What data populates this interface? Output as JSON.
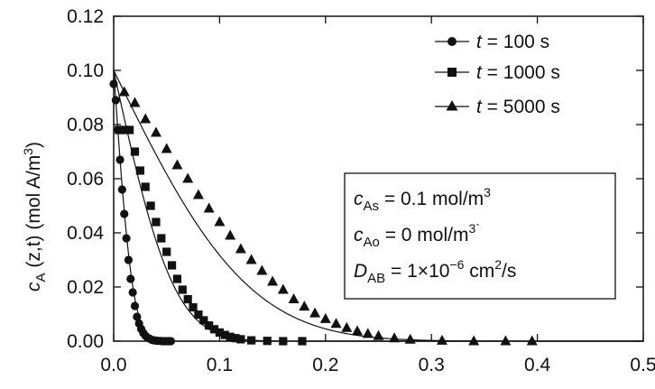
{
  "chart_data": {
    "type": "line",
    "title": "",
    "xlabel": "",
    "ylabel": {
      "var": "c",
      "sub": "A",
      "args": " (z,t) (mol A/m",
      "unit_sup": "3",
      "tail": ")"
    },
    "xlim": [
      0.0,
      0.5
    ],
    "ylim": [
      0.0,
      0.12
    ],
    "x_ticks": [
      "0.0",
      "0.1",
      "0.2",
      "0.3",
      "0.4",
      "0.5"
    ],
    "y_ticks": [
      "0.00",
      "0.02",
      "0.04",
      "0.06",
      "0.08",
      "0.10",
      "0.12"
    ],
    "grid": false,
    "legend_position": "top-right",
    "series": [
      {
        "name_var": "t",
        "name_rest": " = 100 s",
        "marker": "circle",
        "curve_D_cm2_s": 1e-06,
        "curve_t_s": 100,
        "x": [
          0.0,
          0.002,
          0.004,
          0.006,
          0.008,
          0.01,
          0.012,
          0.014,
          0.016,
          0.018,
          0.02,
          0.022,
          0.024,
          0.026,
          0.028,
          0.03,
          0.032,
          0.034,
          0.036,
          0.038,
          0.04,
          0.042,
          0.044,
          0.046,
          0.048,
          0.05,
          0.052,
          0.054
        ],
        "y": [
          0.095,
          0.089,
          0.078,
          0.067,
          0.056,
          0.047,
          0.038,
          0.03,
          0.023,
          0.018,
          0.013,
          0.009,
          0.0065,
          0.0045,
          0.003,
          0.002,
          0.0013,
          0.0009,
          0.0005,
          0.0003,
          0.0002,
          0.0001,
          0.0001,
          0.0,
          0.0,
          0.0,
          0.0,
          0.0
        ]
      },
      {
        "name_var": "t",
        "name_rest": " = 1000 s",
        "marker": "square",
        "curve_D_cm2_s": 1e-06,
        "curve_t_s": 1000,
        "x": [
          0.005,
          0.01,
          0.015,
          0.02,
          0.025,
          0.03,
          0.035,
          0.04,
          0.045,
          0.05,
          0.055,
          0.06,
          0.065,
          0.07,
          0.075,
          0.08,
          0.085,
          0.09,
          0.095,
          0.1,
          0.105,
          0.11,
          0.115,
          0.12,
          0.13,
          0.145,
          0.16,
          0.178
        ],
        "y": [
          0.078,
          0.078,
          0.078,
          0.07,
          0.063,
          0.057,
          0.05,
          0.044,
          0.038,
          0.033,
          0.028,
          0.023,
          0.019,
          0.0155,
          0.0125,
          0.0098,
          0.0077,
          0.0058,
          0.0044,
          0.0032,
          0.0023,
          0.0016,
          0.0011,
          0.0007,
          0.0003,
          0.0001,
          0.0,
          0.0
        ]
      },
      {
        "name_var": "t",
        "name_rest": " = 5000 s",
        "marker": "triangle",
        "curve_D_cm2_s": 1e-06,
        "curve_t_s": 5000,
        "x": [
          0.01,
          0.02,
          0.03,
          0.04,
          0.05,
          0.06,
          0.07,
          0.08,
          0.09,
          0.1,
          0.11,
          0.12,
          0.13,
          0.14,
          0.15,
          0.16,
          0.17,
          0.18,
          0.19,
          0.2,
          0.21,
          0.22,
          0.23,
          0.24,
          0.25,
          0.265,
          0.28,
          0.31,
          0.34,
          0.37,
          0.395
        ],
        "y": [
          0.092,
          0.088,
          0.082,
          0.077,
          0.071,
          0.065,
          0.06,
          0.054,
          0.049,
          0.044,
          0.039,
          0.034,
          0.03,
          0.026,
          0.022,
          0.019,
          0.0155,
          0.0128,
          0.0103,
          0.0082,
          0.0064,
          0.0049,
          0.0037,
          0.0027,
          0.0019,
          0.0011,
          0.0006,
          0.0002,
          0.0,
          0.0,
          0.0
        ]
      }
    ],
    "annotations": [
      {
        "var": "c",
        "sub": "As",
        "rest": " = 0.1 mol/m",
        "sup": "3"
      },
      {
        "var": "c",
        "sub": "Ao",
        "rest": " = 0 mol/m",
        "sup": "3`"
      },
      {
        "var": "D",
        "sub": "AB",
        "rest": " = 1×10",
        "sup": "−6",
        "rest2": " cm",
        "sup2": "2",
        "rest3": "/s"
      }
    ]
  }
}
